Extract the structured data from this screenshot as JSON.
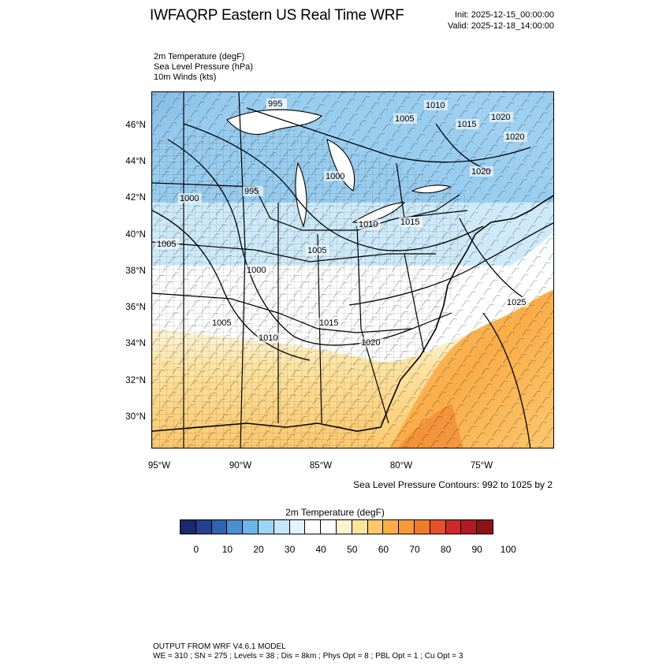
{
  "header": {
    "title": "IWFAQRP Eastern US Real Time WRF",
    "init": "Init: 2025-12-15_00:00:00",
    "valid": "Valid: 2025-12-18_14:00:00"
  },
  "variables": [
    "2m Temperature   (degF)",
    "Sea Level Pressure   (hPa)",
    "10m Winds   (kts)"
  ],
  "map": {
    "lat_labels": [
      "46°N",
      "44°N",
      "42°N",
      "40°N",
      "38°N",
      "36°N",
      "34°N",
      "32°N",
      "30°N"
    ],
    "lon_labels": [
      "95°W",
      "90°W",
      "85°W",
      "80°W",
      "75°W"
    ],
    "slp_labels": [
      "995",
      "1010",
      "1005",
      "1015",
      "1020",
      "1020",
      "1000",
      "995",
      "1000",
      "1010",
      "1015",
      "1005",
      "1005",
      "1000",
      "1005",
      "1015",
      "1010",
      "1020",
      "1025",
      "1020"
    ]
  },
  "contour_note": "Sea Level Pressure Contours: 992 to 1025 by 2",
  "colorbar": {
    "title": "2m Temperature  (degF)",
    "labels": [
      "0",
      "10",
      "20",
      "30",
      "40",
      "50",
      "60",
      "70",
      "80",
      "90",
      "100"
    ],
    "colors": [
      "#1a2a6c",
      "#23418f",
      "#2f63b2",
      "#4a8fd1",
      "#6db4e8",
      "#9fd3f5",
      "#c6e6f8",
      "#e3f2fb",
      "#ffffff",
      "#ffffff",
      "#fff2cf",
      "#fde3a0",
      "#fcc86e",
      "#f9ad49",
      "#f59a38",
      "#ee7b2a",
      "#e4502b",
      "#cf2a2a",
      "#b01d21",
      "#8f1219"
    ]
  },
  "footer": {
    "line1": "OUTPUT FROM WRF V4.6.1 MODEL",
    "line2": "WE = 310 ; SN = 275 ; Levels = 38 ; Dis = 8km ; Phys Opt = 8 ; PBL Opt = 1 ; Cu Opt = 3"
  }
}
